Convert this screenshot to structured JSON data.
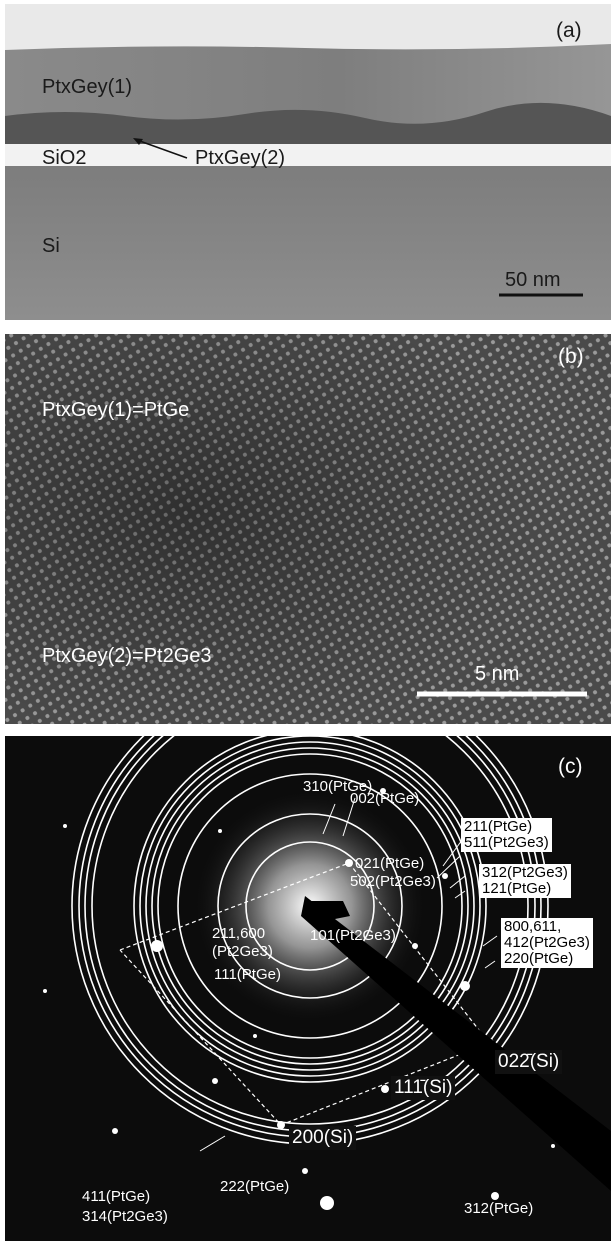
{
  "panel_a": {
    "letter": "(a)",
    "layer1": "PtxGey(1)",
    "layer2": "PtxGey(2)",
    "oxide": "SiO2",
    "substrate": "Si",
    "scale": "50 nm"
  },
  "panel_b": {
    "letter": "(b)",
    "phase1": "PtxGey(1)=PtGe",
    "phase2": "PtxGey(2)=Pt2Ge3",
    "scale": "5 nm"
  },
  "panel_c": {
    "letter": "(c)",
    "rings": {
      "r310": "310(PtGe)",
      "r002": "002(PtGe)",
      "r211": "211(PtGe)",
      "r511": "511(Pt2Ge3)",
      "r312a": "312(Pt2Ge3)",
      "r121": "121(PtGe)",
      "r021": "021(PtGe)",
      "r502": "502(Pt2Ge3)",
      "r800": "800,611,",
      "r412": "412(Pt2Ge3)",
      "r220": "220(PtGe)",
      "r101": "101(Pt2Ge3)",
      "r211600": "211,600",
      "r211600b": "(Pt2Ge3)",
      "r111": "111(PtGe)",
      "r411": "411(PtGe)",
      "r314": "314(Pt2Ge3)",
      "r222": "222(PtGe)",
      "r312b": "312(PtGe)"
    },
    "spots": {
      "s022": "022̄(Si)",
      "s111": "111̄(Si)",
      "s200": "200(Si)"
    }
  }
}
